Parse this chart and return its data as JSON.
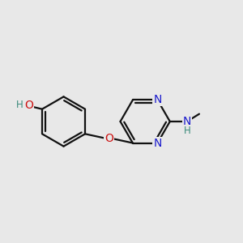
{
  "bg": "#e8e8e8",
  "bond_color": "#111111",
  "lw": 1.6,
  "dbo": 0.013,
  "shrink": 0.01,
  "fs": 10.0,
  "fsh": 8.5,
  "colors": {
    "N": "#1a1acc",
    "O": "#cc1111",
    "H": "#3a8a7a"
  },
  "pcx": 0.255,
  "pcy": 0.5,
  "pr": 0.105,
  "pymx": 0.6,
  "pymy": 0.5,
  "pymr": 0.105,
  "xlim": [
    0,
    1
  ],
  "ylim": [
    0,
    1
  ],
  "figsize": [
    3.0,
    3.0
  ],
  "dpi": 100,
  "phenol_angles": [
    90,
    30,
    -30,
    -90,
    -150,
    150
  ],
  "pyrimidine_angles": [
    60,
    0,
    -60,
    -120,
    180,
    120
  ]
}
